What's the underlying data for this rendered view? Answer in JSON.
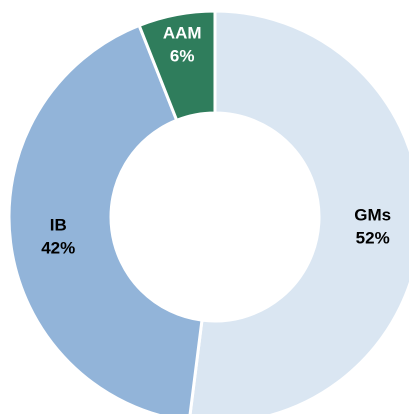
{
  "chart_data": {
    "type": "donut",
    "categories": [
      "GMs",
      "IB",
      "AAM"
    ],
    "values": [
      52,
      42,
      6
    ],
    "value_labels": [
      "52%",
      "42%",
      "6%"
    ],
    "colors": [
      "#dae6f2",
      "#92b4d9",
      "#2f7d5c"
    ]
  }
}
